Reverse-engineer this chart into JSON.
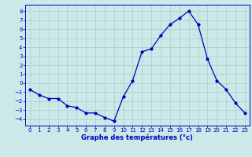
{
  "x": [
    0,
    1,
    2,
    3,
    4,
    5,
    6,
    7,
    8,
    9,
    10,
    11,
    12,
    13,
    14,
    15,
    16,
    17,
    18,
    19,
    20,
    21,
    22,
    23
  ],
  "y": [
    -0.7,
    -1.3,
    -1.7,
    -1.7,
    -2.5,
    -2.7,
    -3.3,
    -3.3,
    -3.8,
    -4.2,
    -1.5,
    0.3,
    3.5,
    3.8,
    5.3,
    6.5,
    7.2,
    8.0,
    6.5,
    2.7,
    0.3,
    -0.7,
    -2.2,
    -3.3
  ],
  "title": "Graphe des températures (°c)",
  "ylabel_ticks": [
    -4,
    -3,
    -2,
    -1,
    0,
    1,
    2,
    3,
    4,
    5,
    6,
    7,
    8
  ],
  "bg_color": "#cce8e8",
  "line_color": "#0000bb",
  "grid_color": "#aacccc",
  "axis_label_color": "#0000bb",
  "tick_color": "#0000bb",
  "ylim": [
    -4.7,
    8.7
  ],
  "xlim": [
    -0.5,
    23.5
  ],
  "tick_fontsize": 5.0,
  "xlabel_fontsize": 6.0,
  "linewidth": 0.9,
  "markersize": 2.0
}
